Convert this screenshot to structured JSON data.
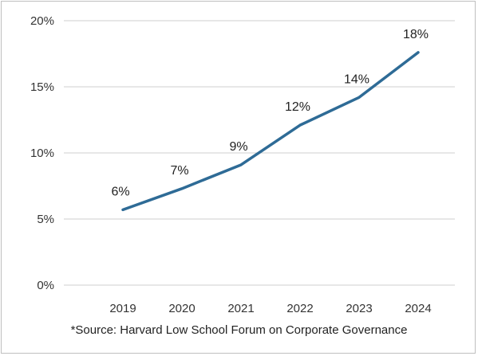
{
  "chart_data": {
    "type": "line",
    "categories": [
      "2019",
      "2020",
      "2021",
      "2022",
      "2023",
      "2024"
    ],
    "values": [
      5.7,
      7.3,
      9.1,
      12.1,
      14.2,
      17.6
    ],
    "data_labels": [
      "6%",
      "7%",
      "9%",
      "12%",
      "14%",
      "18%"
    ],
    "y_ticks": [
      "0%",
      "5%",
      "10%",
      "15%",
      "20%"
    ],
    "ylim": [
      0,
      20
    ],
    "grid": true,
    "legend": "none",
    "colors": {
      "series": "#2e6b96",
      "grid": "#cfcfcf"
    }
  },
  "source_note": "*Source: Harvard Low School Forum on Corporate Governance"
}
